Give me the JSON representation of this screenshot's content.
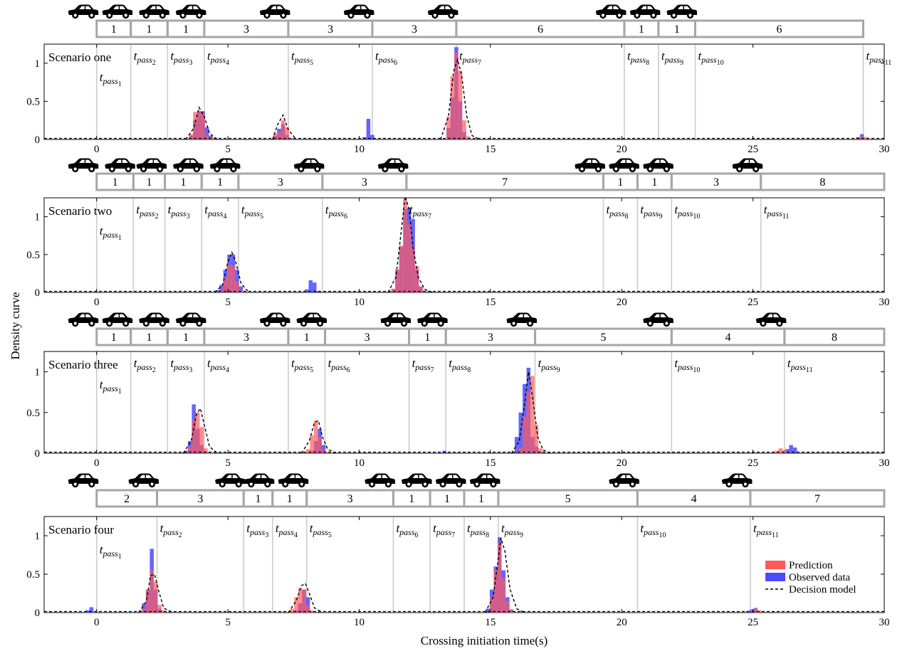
{
  "figure": {
    "ylabel": "Density curve",
    "xlabel": "Crossing initiation time(s)"
  },
  "chart_data": [
    {
      "type": "bar",
      "panel_label": "Scenario one",
      "xlim": [
        -2,
        30
      ],
      "ylim": [
        0,
        1.25
      ],
      "xticks": [
        0,
        5,
        10,
        15,
        20,
        25,
        30
      ],
      "yticks": [
        0,
        0.5,
        1
      ],
      "gap_boundaries": [
        0,
        1.3,
        2.7,
        4.1,
        7.3,
        10.5,
        13.7,
        20.1,
        21.4,
        22.8,
        29.2
      ],
      "gap_labels": [
        "1",
        "1",
        "1",
        "3",
        "3",
        "3",
        "6",
        "1",
        "1",
        "6"
      ],
      "pass_labels": [
        {
          "base": "t",
          "sub": "pass",
          "idx": "1",
          "x": 0
        },
        {
          "base": "t",
          "sub": "pass",
          "idx": "2",
          "x": 1.3
        },
        {
          "base": "t",
          "sub": "pass",
          "idx": "3",
          "x": 2.7
        },
        {
          "base": "t",
          "sub": "pass",
          "idx": "4",
          "x": 4.1
        },
        {
          "base": "t",
          "sub": "pass",
          "idx": "5",
          "x": 7.3
        },
        {
          "base": "t",
          "sub": "pass",
          "idx": "6",
          "x": 10.5
        },
        {
          "base": "t",
          "sub": "pass",
          "idx": "7",
          "x": 13.7
        },
        {
          "base": "t",
          "sub": "pass",
          "idx": "8",
          "x": 20.1
        },
        {
          "base": "t",
          "sub": "pass",
          "idx": "9",
          "x": 21.4
        },
        {
          "base": "t",
          "sub": "pass",
          "idx": "10",
          "x": 22.8
        },
        {
          "base": "t",
          "sub": "pass",
          "idx": "11",
          "x": 29.2
        }
      ],
      "bin_width": 0.15,
      "series": [
        {
          "name": "Observed data",
          "color": "#4a4aff",
          "x": [
            3.6,
            3.75,
            3.9,
            4.05,
            4.2,
            4.35,
            6.8,
            6.95,
            7.1,
            7.25,
            10.2,
            10.35,
            10.5,
            13.4,
            13.55,
            13.7,
            13.85,
            14.0,
            22.75,
            29.0,
            29.15
          ],
          "y": [
            0.05,
            0.25,
            0.37,
            0.37,
            0.16,
            0.05,
            0.05,
            0.14,
            0.2,
            0.06,
            0.03,
            0.27,
            0.06,
            0.15,
            0.55,
            1.21,
            0.5,
            0.1,
            0.01,
            0.03,
            0.07
          ]
        },
        {
          "name": "Prediction",
          "color": "#ff5a5a",
          "x": [
            3.6,
            3.75,
            3.9,
            4.05,
            4.2,
            4.35,
            6.8,
            6.95,
            7.1,
            7.25,
            7.4,
            13.4,
            13.55,
            13.7,
            13.85,
            14.0,
            14.15,
            23.0,
            29.0,
            29.15,
            29.3
          ],
          "y": [
            0.07,
            0.36,
            0.36,
            0.34,
            0.06,
            0.02,
            0.08,
            0.1,
            0.25,
            0.16,
            0.02,
            0.3,
            0.83,
            1.14,
            0.9,
            0.25,
            0.04,
            0.01,
            0.02,
            0.04,
            0.03
          ]
        },
        {
          "name": "Decision model",
          "style": "dashed",
          "x": [
            3.4,
            3.7,
            3.9,
            4.1,
            4.3,
            4.6,
            6.7,
            6.9,
            7.1,
            7.3,
            7.6,
            13.1,
            13.4,
            13.6,
            13.75,
            13.9,
            14.1,
            14.3,
            14.6
          ],
          "y": [
            0.0,
            0.15,
            0.42,
            0.3,
            0.08,
            0.0,
            0.0,
            0.2,
            0.32,
            0.13,
            0.0,
            0.0,
            0.3,
            0.9,
            1.05,
            0.85,
            0.3,
            0.05,
            0.0
          ]
        }
      ]
    },
    {
      "type": "bar",
      "panel_label": "Scenario two",
      "xlim": [
        -2,
        30
      ],
      "ylim": [
        0,
        1.25
      ],
      "xticks": [
        0,
        5,
        10,
        15,
        20,
        25,
        30
      ],
      "yticks": [
        0,
        0.5,
        1
      ],
      "gap_boundaries": [
        0,
        1.4,
        2.6,
        4.0,
        5.4,
        8.6,
        11.8,
        19.3,
        20.6,
        21.9,
        25.3,
        30
      ],
      "gap_labels": [
        "1",
        "1",
        "1",
        "1",
        "3",
        "3",
        "7",
        "1",
        "1",
        "3",
        "8"
      ],
      "pass_labels": [
        {
          "base": "t",
          "sub": "pass",
          "idx": "1",
          "x": 0
        },
        {
          "base": "t",
          "sub": "pass",
          "idx": "2",
          "x": 1.4
        },
        {
          "base": "t",
          "sub": "pass",
          "idx": "3",
          "x": 2.6
        },
        {
          "base": "t",
          "sub": "pass",
          "idx": "4",
          "x": 4.0
        },
        {
          "base": "t",
          "sub": "pass",
          "idx": "5",
          "x": 5.4
        },
        {
          "base": "t",
          "sub": "pass",
          "idx": "6",
          "x": 8.6
        },
        {
          "base": "t",
          "sub": "pass",
          "idx": "7",
          "x": 11.8
        },
        {
          "base": "t",
          "sub": "pass",
          "idx": "8",
          "x": 19.3
        },
        {
          "base": "t",
          "sub": "pass",
          "idx": "9",
          "x": 20.6
        },
        {
          "base": "t",
          "sub": "pass",
          "idx": "10",
          "x": 21.9
        },
        {
          "base": "t",
          "sub": "pass",
          "idx": "11",
          "x": 25.3
        }
      ],
      "bin_width": 0.15,
      "series": [
        {
          "name": "Observed data",
          "color": "#4a4aff",
          "x": [
            4.6,
            4.75,
            4.9,
            5.05,
            5.2,
            5.35,
            5.5,
            8.0,
            8.15,
            8.3,
            8.45,
            11.3,
            11.45,
            11.6,
            11.75,
            11.9,
            12.05,
            12.2,
            12.35,
            12.5
          ],
          "y": [
            0.03,
            0.1,
            0.3,
            0.5,
            0.5,
            0.3,
            0.08,
            0.04,
            0.16,
            0.13,
            0.02,
            0.04,
            0.3,
            0.6,
            1.1,
            1.12,
            0.97,
            0.3,
            0.08,
            0.02
          ]
        },
        {
          "name": "Prediction",
          "color": "#ff5a5a",
          "x": [
            4.75,
            4.9,
            5.05,
            5.2,
            5.35,
            5.5,
            11.3,
            11.45,
            11.6,
            11.75,
            11.9,
            12.05,
            12.2,
            12.35,
            12.5
          ],
          "y": [
            0.04,
            0.2,
            0.37,
            0.35,
            0.14,
            0.03,
            0.05,
            0.3,
            0.62,
            1.23,
            0.9,
            0.6,
            0.35,
            0.08,
            0.02
          ]
        },
        {
          "name": "Decision model",
          "style": "dashed",
          "x": [
            4.5,
            4.8,
            5.0,
            5.15,
            5.3,
            5.5,
            5.8,
            11.1,
            11.4,
            11.6,
            11.75,
            11.9,
            12.05,
            12.25,
            12.5,
            12.8
          ],
          "y": [
            0.0,
            0.1,
            0.4,
            0.53,
            0.4,
            0.12,
            0.0,
            0.0,
            0.2,
            0.8,
            1.27,
            1.1,
            0.6,
            0.2,
            0.04,
            0.0
          ]
        }
      ]
    },
    {
      "type": "bar",
      "panel_label": "Scenario three",
      "xlim": [
        -2,
        30
      ],
      "ylim": [
        0,
        1.25
      ],
      "xticks": [
        0,
        5,
        10,
        15,
        20,
        25,
        30
      ],
      "yticks": [
        0,
        0.5,
        1
      ],
      "gap_boundaries": [
        0,
        1.3,
        2.7,
        4.1,
        7.3,
        8.7,
        11.9,
        13.3,
        16.7,
        21.9,
        26.2,
        30
      ],
      "gap_labels": [
        "1",
        "1",
        "1",
        "3",
        "1",
        "3",
        "1",
        "3",
        "5",
        "4",
        "8"
      ],
      "pass_labels": [
        {
          "base": "t",
          "sub": "pass",
          "idx": "1",
          "x": 0
        },
        {
          "base": "t",
          "sub": "pass",
          "idx": "2",
          "x": 1.3
        },
        {
          "base": "t",
          "sub": "pass",
          "idx": "3",
          "x": 2.7
        },
        {
          "base": "t",
          "sub": "pass",
          "idx": "4",
          "x": 4.1
        },
        {
          "base": "t",
          "sub": "pass",
          "idx": "5",
          "x": 7.3
        },
        {
          "base": "t",
          "sub": "pass",
          "idx": "6",
          "x": 8.7
        },
        {
          "base": "t",
          "sub": "pass",
          "idx": "7",
          "x": 11.9
        },
        {
          "base": "t",
          "sub": "pass",
          "idx": "8",
          "x": 13.3
        },
        {
          "base": "t",
          "sub": "pass",
          "idx": "9",
          "x": 16.7
        },
        {
          "base": "t",
          "sub": "pass",
          "idx": "10",
          "x": 21.9
        },
        {
          "base": "t",
          "sub": "pass",
          "idx": "11",
          "x": 26.2
        }
      ],
      "bin_width": 0.15,
      "series": [
        {
          "name": "Observed data",
          "color": "#4a4aff",
          "x": [
            3.4,
            3.55,
            3.7,
            3.85,
            4.0,
            4.15,
            8.2,
            8.35,
            8.5,
            8.65,
            13.1,
            13.25,
            16.0,
            16.15,
            16.3,
            16.45,
            16.6,
            16.75,
            16.9,
            26.3,
            26.45,
            26.6
          ],
          "y": [
            0.03,
            0.15,
            0.6,
            0.3,
            0.1,
            0.02,
            0.03,
            0.15,
            0.3,
            0.1,
            0.01,
            0.03,
            0.2,
            0.5,
            0.85,
            1.05,
            0.2,
            0.08,
            0.02,
            0.05,
            0.1,
            0.07
          ]
        },
        {
          "name": "Prediction",
          "color": "#ff5a5a",
          "x": [
            3.55,
            3.7,
            3.85,
            4.0,
            4.15,
            4.3,
            8.05,
            8.2,
            8.35,
            8.5,
            8.65,
            8.8,
            16.15,
            16.3,
            16.45,
            16.6,
            16.75,
            16.9,
            25.9,
            26.05,
            26.2
          ],
          "y": [
            0.08,
            0.42,
            0.5,
            0.32,
            0.06,
            0.02,
            0.05,
            0.22,
            0.4,
            0.2,
            0.05,
            0.02,
            0.07,
            0.45,
            0.75,
            0.95,
            0.35,
            0.06,
            0.03,
            0.06,
            0.04
          ]
        },
        {
          "name": "Decision model",
          "style": "dashed",
          "x": [
            3.3,
            3.6,
            3.8,
            3.95,
            4.1,
            4.3,
            4.6,
            7.8,
            8.1,
            8.3,
            8.45,
            8.6,
            8.8,
            9.1,
            15.8,
            16.1,
            16.3,
            16.45,
            16.6,
            16.8,
            17.0,
            17.3
          ],
          "y": [
            0.0,
            0.15,
            0.48,
            0.55,
            0.35,
            0.08,
            0.0,
            0.0,
            0.15,
            0.38,
            0.4,
            0.2,
            0.05,
            0.0,
            0.0,
            0.15,
            0.6,
            1.0,
            0.7,
            0.2,
            0.04,
            0.0
          ]
        }
      ]
    },
    {
      "type": "bar",
      "panel_label": "Scenario four",
      "xlim": [
        -2,
        30
      ],
      "ylim": [
        0,
        1.25
      ],
      "xticks": [
        0,
        5,
        10,
        15,
        20,
        25,
        30
      ],
      "yticks": [
        0,
        0.5,
        1
      ],
      "gap_boundaries": [
        0,
        2.3,
        5.6,
        6.7,
        8.0,
        11.3,
        12.7,
        14.0,
        15.3,
        20.6,
        24.9,
        30
      ],
      "gap_labels": [
        "2",
        "3",
        "1",
        "1",
        "3",
        "1",
        "1",
        "1",
        "5",
        "4",
        "7"
      ],
      "pass_labels": [
        {
          "base": "t",
          "sub": "pass",
          "idx": "1",
          "x": 0
        },
        {
          "base": "t",
          "sub": "pass",
          "idx": "2",
          "x": 2.3
        },
        {
          "base": "t",
          "sub": "pass",
          "idx": "3",
          "x": 5.6
        },
        {
          "base": "t",
          "sub": "pass",
          "idx": "4",
          "x": 6.7
        },
        {
          "base": "t",
          "sub": "pass",
          "idx": "5",
          "x": 8.0
        },
        {
          "base": "t",
          "sub": "pass",
          "idx": "6",
          "x": 11.3
        },
        {
          "base": "t",
          "sub": "pass",
          "idx": "7",
          "x": 12.7
        },
        {
          "base": "t",
          "sub": "pass",
          "idx": "8",
          "x": 14.0
        },
        {
          "base": "t",
          "sub": "pass",
          "idx": "9",
          "x": 15.3
        },
        {
          "base": "t",
          "sub": "pass",
          "idx": "10",
          "x": 20.6
        },
        {
          "base": "t",
          "sub": "pass",
          "idx": "11",
          "x": 24.9
        }
      ],
      "bin_width": 0.15,
      "series": [
        {
          "name": "Observed data",
          "color": "#4a4aff",
          "x": [
            -0.35,
            -0.2,
            1.8,
            1.95,
            2.1,
            2.25,
            2.4,
            7.6,
            7.75,
            7.9,
            8.05,
            14.9,
            15.05,
            15.2,
            15.35,
            15.5,
            15.65,
            15.8,
            24.8,
            24.95,
            25.1
          ],
          "y": [
            0.03,
            0.07,
            0.12,
            0.3,
            0.83,
            0.3,
            0.05,
            0.03,
            0.12,
            0.3,
            0.2,
            0.05,
            0.3,
            0.6,
            0.98,
            0.55,
            0.2,
            0.04,
            0.02,
            0.04,
            0.06
          ]
        },
        {
          "name": "Prediction",
          "color": "#ff5a5a",
          "x": [
            1.8,
            1.95,
            2.1,
            2.25,
            2.4,
            2.55,
            7.45,
            7.6,
            7.75,
            7.9,
            8.05,
            8.2,
            15.05,
            15.2,
            15.35,
            15.5,
            15.65,
            15.8,
            25.1,
            25.25
          ],
          "y": [
            0.05,
            0.3,
            0.55,
            0.4,
            0.1,
            0.03,
            0.05,
            0.2,
            0.32,
            0.3,
            0.1,
            0.03,
            0.2,
            0.55,
            0.92,
            0.45,
            0.15,
            0.03,
            0.05,
            0.03
          ]
        },
        {
          "name": "Decision model",
          "style": "dashed",
          "x": [
            1.6,
            1.9,
            2.05,
            2.2,
            2.35,
            2.55,
            2.9,
            7.3,
            7.6,
            7.8,
            7.95,
            8.1,
            8.3,
            8.6,
            14.8,
            15.1,
            15.3,
            15.4,
            15.55,
            15.75,
            16.0,
            16.3
          ],
          "y": [
            0.0,
            0.15,
            0.48,
            0.5,
            0.3,
            0.06,
            0.0,
            0.0,
            0.15,
            0.35,
            0.38,
            0.25,
            0.06,
            0.0,
            0.0,
            0.2,
            0.7,
            0.97,
            0.8,
            0.3,
            0.05,
            0.0
          ]
        }
      ]
    }
  ],
  "legend": {
    "placement": "bottom-right of Scenario four",
    "entries": [
      {
        "label": "Prediction",
        "color": "#ff5a5a",
        "kind": "patch"
      },
      {
        "label": "Observed data",
        "color": "#4a4aff",
        "kind": "patch"
      },
      {
        "label": "Decision model",
        "color": "#000000",
        "kind": "dashed"
      }
    ]
  },
  "colors": {
    "gap_box_stroke": "#a6a6a6",
    "pass_line": "#cccccc",
    "axes": "#000000",
    "car": "#000000"
  },
  "icons": {
    "vehicle": "car-icon"
  }
}
